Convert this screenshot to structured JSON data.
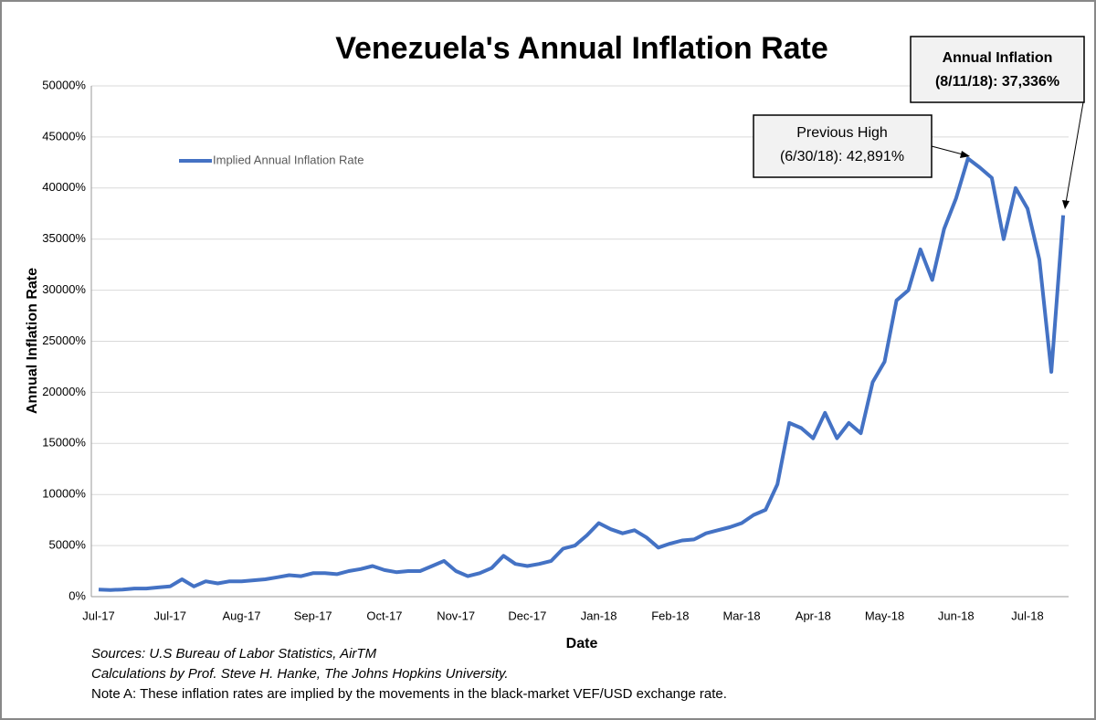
{
  "chart_data": {
    "type": "line",
    "title": "Venezuela's Annual Inflation Rate",
    "x_label": "Date",
    "y_label": "Annual Inflation Rate",
    "categories": [
      "Jul-17",
      null,
      null,
      null,
      null,
      null,
      "Jul-17",
      null,
      null,
      null,
      null,
      null,
      "Aug-17",
      null,
      null,
      null,
      null,
      null,
      "Sep-17",
      null,
      null,
      null,
      null,
      null,
      "Oct-17",
      null,
      null,
      null,
      null,
      null,
      "Nov-17",
      null,
      null,
      null,
      null,
      null,
      "Dec-17",
      null,
      null,
      null,
      null,
      null,
      "Jan-18",
      null,
      null,
      null,
      null,
      null,
      "Feb-18",
      null,
      null,
      null,
      null,
      null,
      "Mar-18",
      null,
      null,
      null,
      null,
      null,
      "Apr-18",
      null,
      null,
      null,
      null,
      null,
      "May-18",
      null,
      null,
      null,
      null,
      null,
      "Jun-18",
      null,
      null,
      null,
      null,
      null,
      "Jul-18",
      null,
      null,
      null
    ],
    "series": [
      {
        "name": "Implied Annual Inflation Rate",
        "color": "#4472c4",
        "values": [
          700,
          650,
          700,
          800,
          800,
          900,
          1000,
          1700,
          1000,
          1500,
          1300,
          1500,
          1500,
          1600,
          1700,
          1900,
          2100,
          2000,
          2300,
          2300,
          2200,
          2500,
          2700,
          3000,
          2600,
          2400,
          2500,
          2500,
          3000,
          3500,
          2500,
          2000,
          2300,
          2800,
          4000,
          3200,
          3000,
          3200,
          3500,
          4700,
          5000,
          6000,
          7200,
          6600,
          6200,
          6500,
          5800,
          4800,
          5200,
          5500,
          5600,
          6200,
          6500,
          6800,
          7200,
          8000,
          8500,
          11000,
          17000,
          16500,
          15500,
          18000,
          15500,
          17000,
          16000,
          21000,
          23000,
          29000,
          30000,
          34000,
          31000,
          36000,
          39000,
          42891,
          42000,
          41000,
          35000,
          40000,
          38000,
          33000,
          22000,
          37336
        ]
      }
    ],
    "ylim": [
      0,
      50000
    ],
    "yticks": [
      {
        "value": 0,
        "label": "0%"
      },
      {
        "value": 5000,
        "label": "5000%"
      },
      {
        "value": 10000,
        "label": "10000%"
      },
      {
        "value": 15000,
        "label": "15000%"
      },
      {
        "value": 20000,
        "label": "20000%"
      },
      {
        "value": 25000,
        "label": "25000%"
      },
      {
        "value": 30000,
        "label": "30000%"
      },
      {
        "value": 35000,
        "label": "35000%"
      },
      {
        "value": 40000,
        "label": "40000%"
      },
      {
        "value": 45000,
        "label": "45000%"
      },
      {
        "value": 50000,
        "label": "50000%"
      }
    ],
    "grid": true,
    "legend": "upper left",
    "annotations": [
      {
        "lines": [
          "Previous High",
          "(6/30/18): 42,891%"
        ]
      },
      {
        "lines": [
          "Annual Inflation",
          "(8/11/18): 37,336%"
        ]
      }
    ],
    "notes": [
      "Sources: U.S Bureau of Labor Statistics, AirTM",
      "Calculations by Prof. Steve H. Hanke, The Johns Hopkins University.",
      "Note A: These inflation rates are implied by the movements in the black-market VEF/USD exchange rate."
    ]
  }
}
